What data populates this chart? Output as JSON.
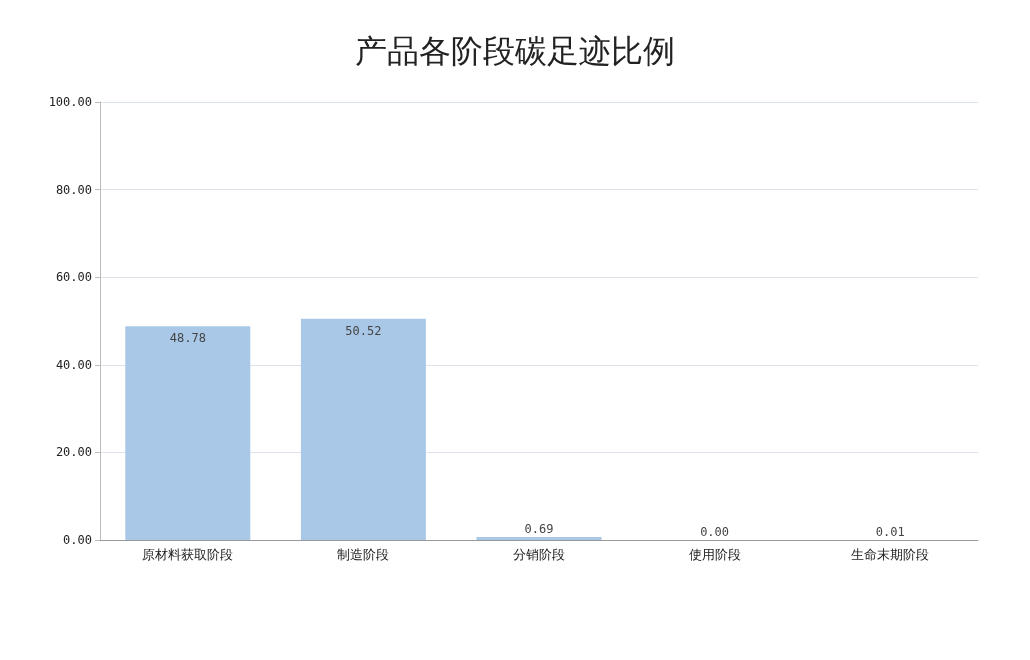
{
  "chart_data": {
    "type": "bar",
    "title": "产品各阶段碳足迹比例",
    "categories": [
      "原材料获取阶段",
      "制造阶段",
      "分销阶段",
      "使用阶段",
      "生命末期阶段"
    ],
    "values": [
      48.78,
      50.52,
      0.69,
      0.0,
      0.01
    ],
    "value_labels": [
      "48.78",
      "50.52",
      "0.69",
      "0.00",
      "0.01"
    ],
    "color": "#a9c8e8",
    "ylim": [
      0,
      100
    ],
    "yticks": [
      {
        "value": 0,
        "label": "0.00"
      },
      {
        "value": 20,
        "label": "20.00"
      },
      {
        "value": 40,
        "label": "40.00"
      },
      {
        "value": 60,
        "label": "60.00"
      },
      {
        "value": 80,
        "label": "80.00"
      },
      {
        "value": 100,
        "label": "100.00"
      }
    ],
    "grid": true
  }
}
